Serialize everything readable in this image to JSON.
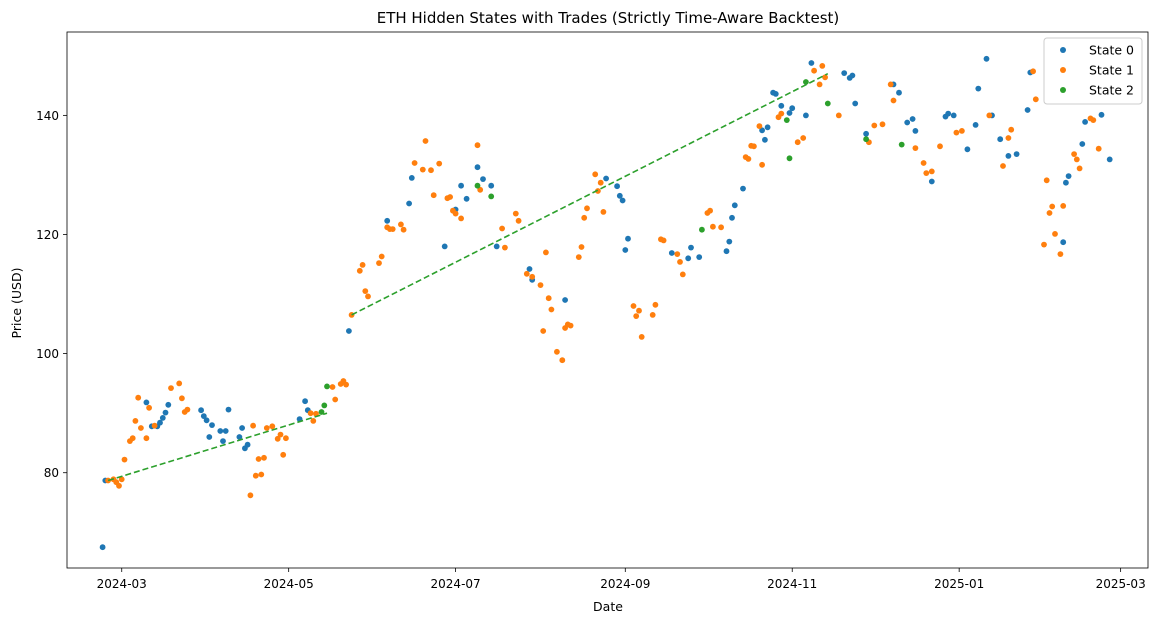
{
  "chart_data": {
    "type": "scatter",
    "title": "ETH Hidden States with Trades (Strictly Time-Aware Backtest)",
    "xlabel": "Date",
    "ylabel": "Price (USD)",
    "x_type": "date",
    "xlim": [
      "2024-02-10",
      "2025-03-11"
    ],
    "ylim": [
      64,
      154
    ],
    "x_ticks": [
      "2024-03-01",
      "2024-05-01",
      "2024-07-01",
      "2024-09-01",
      "2024-11-01",
      "2025-01-01",
      "2025-03-01"
    ],
    "x_tick_labels": [
      "2024-03",
      "2024-05",
      "2024-07",
      "2024-09",
      "2024-11",
      "2025-01",
      "2025-03"
    ],
    "y_ticks": [
      80,
      100,
      120,
      140
    ],
    "grid": false,
    "legend_position": "top-right",
    "series": [
      {
        "name": "State 0",
        "color": "#1f77b4",
        "points": [
          [
            "2024-02-23",
            67.5
          ],
          [
            "2024-02-24",
            78.7
          ],
          [
            "2024-03-10",
            91.8
          ],
          [
            "2024-03-12",
            87.8
          ],
          [
            "2024-03-14",
            87.8
          ],
          [
            "2024-03-15",
            88.4
          ],
          [
            "2024-03-16",
            89.2
          ],
          [
            "2024-03-17",
            90.1
          ],
          [
            "2024-03-18",
            91.4
          ],
          [
            "2024-03-30",
            90.5
          ],
          [
            "2024-03-31",
            89.5
          ],
          [
            "2024-04-01",
            88.8
          ],
          [
            "2024-04-02",
            86.0
          ],
          [
            "2024-04-03",
            88.0
          ],
          [
            "2024-04-06",
            87.0
          ],
          [
            "2024-04-07",
            85.3
          ],
          [
            "2024-04-08",
            87.0
          ],
          [
            "2024-04-09",
            90.6
          ],
          [
            "2024-04-13",
            86.0
          ],
          [
            "2024-04-14",
            87.5
          ],
          [
            "2024-04-15",
            84.1
          ],
          [
            "2024-04-16",
            84.7
          ],
          [
            "2024-05-05",
            89.0
          ],
          [
            "2024-05-07",
            92.0
          ],
          [
            "2024-05-08",
            90.5
          ],
          [
            "2024-05-23",
            103.8
          ],
          [
            "2024-06-06",
            122.3
          ],
          [
            "2024-06-14",
            125.2
          ],
          [
            "2024-06-15",
            129.5
          ],
          [
            "2024-06-27",
            118.0
          ],
          [
            "2024-07-01",
            124.2
          ],
          [
            "2024-07-03",
            128.2
          ],
          [
            "2024-07-05",
            126.0
          ],
          [
            "2024-07-09",
            131.3
          ],
          [
            "2024-07-11",
            129.3
          ],
          [
            "2024-07-14",
            128.2
          ],
          [
            "2024-07-16",
            118.0
          ],
          [
            "2024-07-28",
            114.2
          ],
          [
            "2024-07-29",
            112.4
          ],
          [
            "2024-08-10",
            109.0
          ],
          [
            "2024-08-25",
            129.4
          ],
          [
            "2024-08-29",
            128.1
          ],
          [
            "2024-08-30",
            126.5
          ],
          [
            "2024-08-31",
            125.7
          ],
          [
            "2024-09-01",
            117.4
          ],
          [
            "2024-09-02",
            119.3
          ],
          [
            "2024-09-18",
            116.9
          ],
          [
            "2024-09-24",
            116.0
          ],
          [
            "2024-09-25",
            117.8
          ],
          [
            "2024-09-28",
            116.2
          ],
          [
            "2024-10-08",
            117.2
          ],
          [
            "2024-10-09",
            118.8
          ],
          [
            "2024-10-10",
            122.8
          ],
          [
            "2024-10-11",
            124.9
          ],
          [
            "2024-10-14",
            127.7
          ],
          [
            "2024-10-21",
            137.5
          ],
          [
            "2024-10-22",
            135.9
          ],
          [
            "2024-10-23",
            138.0
          ],
          [
            "2024-10-25",
            143.8
          ],
          [
            "2024-10-26",
            143.6
          ],
          [
            "2024-10-28",
            141.6
          ],
          [
            "2024-10-31",
            140.4
          ],
          [
            "2024-11-01",
            141.2
          ],
          [
            "2024-11-06",
            140.0
          ],
          [
            "2024-11-08",
            148.8
          ],
          [
            "2024-11-20",
            147.1
          ],
          [
            "2024-11-22",
            146.3
          ],
          [
            "2024-11-23",
            146.7
          ],
          [
            "2024-11-24",
            142.0
          ],
          [
            "2024-11-28",
            136.9
          ],
          [
            "2024-12-08",
            145.2
          ],
          [
            "2024-12-10",
            143.8
          ],
          [
            "2024-12-13",
            138.8
          ],
          [
            "2024-12-15",
            139.4
          ],
          [
            "2024-12-16",
            137.4
          ],
          [
            "2024-12-22",
            128.9
          ],
          [
            "2024-12-27",
            139.8
          ],
          [
            "2024-12-28",
            140.3
          ],
          [
            "2024-12-30",
            140.0
          ],
          [
            "2025-01-04",
            134.3
          ],
          [
            "2025-01-07",
            138.4
          ],
          [
            "2025-01-08",
            144.5
          ],
          [
            "2025-01-11",
            149.5
          ],
          [
            "2025-01-13",
            140.0
          ],
          [
            "2025-01-16",
            136.0
          ],
          [
            "2025-01-19",
            133.2
          ],
          [
            "2025-01-22",
            133.5
          ],
          [
            "2025-01-26",
            140.9
          ],
          [
            "2025-01-27",
            147.2
          ],
          [
            "2025-02-08",
            118.7
          ],
          [
            "2025-02-09",
            128.7
          ],
          [
            "2025-02-10",
            129.8
          ],
          [
            "2025-02-15",
            135.2
          ],
          [
            "2025-02-16",
            138.9
          ],
          [
            "2025-02-22",
            140.1
          ],
          [
            "2025-02-25",
            132.6
          ]
        ]
      },
      {
        "name": "State 1",
        "color": "#ff7f0e",
        "points": [
          [
            "2024-02-25",
            78.7
          ],
          [
            "2024-02-27",
            78.9
          ],
          [
            "2024-02-28",
            78.4
          ],
          [
            "2024-02-29",
            77.8
          ],
          [
            "2024-03-01",
            78.9
          ],
          [
            "2024-03-02",
            82.2
          ],
          [
            "2024-03-04",
            85.3
          ],
          [
            "2024-03-05",
            85.8
          ],
          [
            "2024-03-06",
            88.7
          ],
          [
            "2024-03-07",
            92.6
          ],
          [
            "2024-03-08",
            87.5
          ],
          [
            "2024-03-10",
            85.8
          ],
          [
            "2024-03-11",
            90.9
          ],
          [
            "2024-03-13",
            87.9
          ],
          [
            "2024-03-19",
            94.2
          ],
          [
            "2024-03-22",
            95.0
          ],
          [
            "2024-03-23",
            92.5
          ],
          [
            "2024-03-24",
            90.2
          ],
          [
            "2024-03-25",
            90.6
          ],
          [
            "2024-04-17",
            76.2
          ],
          [
            "2024-04-18",
            87.9
          ],
          [
            "2024-04-19",
            79.5
          ],
          [
            "2024-04-20",
            82.3
          ],
          [
            "2024-04-21",
            79.7
          ],
          [
            "2024-04-22",
            82.5
          ],
          [
            "2024-04-23",
            87.5
          ],
          [
            "2024-04-25",
            87.8
          ],
          [
            "2024-04-27",
            85.7
          ],
          [
            "2024-04-28",
            86.4
          ],
          [
            "2024-04-29",
            83.0
          ],
          [
            "2024-04-30",
            85.8
          ],
          [
            "2024-05-09",
            90.0
          ],
          [
            "2024-05-10",
            88.7
          ],
          [
            "2024-05-11",
            89.9
          ],
          [
            "2024-05-17",
            94.4
          ],
          [
            "2024-05-18",
            92.3
          ],
          [
            "2024-05-20",
            94.9
          ],
          [
            "2024-05-21",
            95.4
          ],
          [
            "2024-05-22",
            94.8
          ],
          [
            "2024-05-24",
            106.5
          ],
          [
            "2024-05-27",
            113.9
          ],
          [
            "2024-05-28",
            114.9
          ],
          [
            "2024-05-29",
            110.5
          ],
          [
            "2024-05-30",
            109.6
          ],
          [
            "2024-06-03",
            115.2
          ],
          [
            "2024-06-04",
            116.3
          ],
          [
            "2024-06-06",
            121.2
          ],
          [
            "2024-06-07",
            120.9
          ],
          [
            "2024-06-08",
            120.9
          ],
          [
            "2024-06-11",
            121.7
          ],
          [
            "2024-06-12",
            120.8
          ],
          [
            "2024-06-16",
            132.0
          ],
          [
            "2024-06-19",
            130.9
          ],
          [
            "2024-06-20",
            135.7
          ],
          [
            "2024-06-22",
            130.8
          ],
          [
            "2024-06-23",
            126.6
          ],
          [
            "2024-06-25",
            131.9
          ],
          [
            "2024-06-28",
            126.1
          ],
          [
            "2024-06-29",
            126.3
          ],
          [
            "2024-06-30",
            124.0
          ],
          [
            "2024-07-01",
            123.5
          ],
          [
            "2024-07-03",
            122.7
          ],
          [
            "2024-07-09",
            135.0
          ],
          [
            "2024-07-10",
            127.5
          ],
          [
            "2024-07-18",
            121.0
          ],
          [
            "2024-07-19",
            117.8
          ],
          [
            "2024-07-23",
            123.5
          ],
          [
            "2024-07-24",
            122.3
          ],
          [
            "2024-07-27",
            113.4
          ],
          [
            "2024-07-29",
            112.9
          ],
          [
            "2024-08-01",
            111.5
          ],
          [
            "2024-08-02",
            103.8
          ],
          [
            "2024-08-03",
            117.0
          ],
          [
            "2024-08-04",
            109.3
          ],
          [
            "2024-08-05",
            107.4
          ],
          [
            "2024-08-07",
            100.3
          ],
          [
            "2024-08-09",
            98.9
          ],
          [
            "2024-08-10",
            104.3
          ],
          [
            "2024-08-11",
            104.9
          ],
          [
            "2024-08-12",
            104.7
          ],
          [
            "2024-08-15",
            116.2
          ],
          [
            "2024-08-16",
            117.9
          ],
          [
            "2024-08-17",
            122.8
          ],
          [
            "2024-08-18",
            124.4
          ],
          [
            "2024-08-21",
            130.1
          ],
          [
            "2024-08-22",
            127.3
          ],
          [
            "2024-08-23",
            128.7
          ],
          [
            "2024-08-24",
            123.8
          ],
          [
            "2024-09-04",
            108.0
          ],
          [
            "2024-09-05",
            106.3
          ],
          [
            "2024-09-06",
            107.2
          ],
          [
            "2024-09-07",
            102.8
          ],
          [
            "2024-09-11",
            106.5
          ],
          [
            "2024-09-12",
            108.2
          ],
          [
            "2024-09-14",
            119.2
          ],
          [
            "2024-09-15",
            119.0
          ],
          [
            "2024-09-20",
            116.7
          ],
          [
            "2024-09-21",
            115.4
          ],
          [
            "2024-09-22",
            113.3
          ],
          [
            "2024-10-01",
            123.6
          ],
          [
            "2024-10-02",
            124.0
          ],
          [
            "2024-10-03",
            121.3
          ],
          [
            "2024-10-06",
            121.2
          ],
          [
            "2024-10-15",
            133.0
          ],
          [
            "2024-10-16",
            132.7
          ],
          [
            "2024-10-17",
            134.9
          ],
          [
            "2024-10-18",
            134.8
          ],
          [
            "2024-10-20",
            138.2
          ],
          [
            "2024-10-21",
            131.7
          ],
          [
            "2024-10-27",
            139.7
          ],
          [
            "2024-10-28",
            140.3
          ],
          [
            "2024-11-03",
            135.5
          ],
          [
            "2024-11-05",
            136.2
          ],
          [
            "2024-11-09",
            147.5
          ],
          [
            "2024-11-11",
            145.2
          ],
          [
            "2024-11-12",
            148.3
          ],
          [
            "2024-11-13",
            146.4
          ],
          [
            "2024-11-18",
            140.0
          ],
          [
            "2024-11-29",
            135.5
          ],
          [
            "2024-12-01",
            138.3
          ],
          [
            "2024-12-04",
            138.5
          ],
          [
            "2024-12-07",
            145.2
          ],
          [
            "2024-12-08",
            142.5
          ],
          [
            "2024-12-16",
            134.5
          ],
          [
            "2024-12-19",
            132.0
          ],
          [
            "2024-12-20",
            130.3
          ],
          [
            "2024-12-22",
            130.6
          ],
          [
            "2024-12-25",
            134.8
          ],
          [
            "2024-12-31",
            137.1
          ],
          [
            "2025-01-02",
            137.4
          ],
          [
            "2025-01-12",
            140.0
          ],
          [
            "2025-01-17",
            131.5
          ],
          [
            "2025-01-19",
            136.2
          ],
          [
            "2025-01-20",
            137.6
          ],
          [
            "2025-01-28",
            147.4
          ],
          [
            "2025-01-29",
            142.7
          ],
          [
            "2025-02-01",
            118.3
          ],
          [
            "2025-02-02",
            129.1
          ],
          [
            "2025-02-03",
            123.6
          ],
          [
            "2025-02-04",
            124.7
          ],
          [
            "2025-02-05",
            120.1
          ],
          [
            "2025-02-07",
            116.7
          ],
          [
            "2025-02-08",
            124.8
          ],
          [
            "2025-02-12",
            133.5
          ],
          [
            "2025-02-13",
            132.6
          ],
          [
            "2025-02-14",
            131.1
          ],
          [
            "2025-02-18",
            139.5
          ],
          [
            "2025-02-19",
            139.2
          ],
          [
            "2025-02-21",
            134.4
          ]
        ]
      },
      {
        "name": "State 2",
        "color": "#2ca02c",
        "points": [
          [
            "2024-05-13",
            90.2
          ],
          [
            "2024-05-14",
            91.3
          ],
          [
            "2024-05-15",
            94.5
          ],
          [
            "2024-07-09",
            128.2
          ],
          [
            "2024-07-14",
            126.4
          ],
          [
            "2024-09-29",
            120.8
          ],
          [
            "2024-10-30",
            139.2
          ],
          [
            "2024-10-31",
            132.8
          ],
          [
            "2024-11-06",
            145.6
          ],
          [
            "2024-11-14",
            142.0
          ],
          [
            "2024-11-28",
            136.0
          ],
          [
            "2024-12-11",
            135.1
          ]
        ]
      }
    ],
    "trade_lines": [
      {
        "color": "#2ca02c",
        "style": "dashed",
        "points": [
          [
            "2024-02-25",
            78.7
          ],
          [
            "2024-05-15",
            90.0
          ]
        ]
      },
      {
        "color": "#2ca02c",
        "style": "dashed",
        "points": [
          [
            "2024-05-24",
            106.5
          ],
          [
            "2024-11-14",
            147.0
          ]
        ]
      }
    ]
  }
}
